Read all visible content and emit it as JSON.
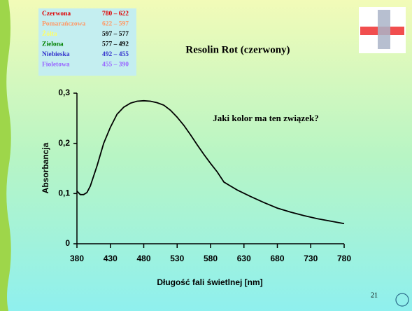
{
  "chart_data": {
    "type": "line",
    "title": "Resolin Rot (czerwony)",
    "x_label": "Długość fali świetlnej [nm]",
    "y_label": "Absorbancja",
    "annotation": "Jaki kolor ma ten związek?",
    "x": [
      380,
      385,
      390,
      395,
      400,
      410,
      420,
      430,
      440,
      450,
      460,
      470,
      480,
      490,
      500,
      510,
      520,
      530,
      540,
      550,
      560,
      570,
      580,
      590,
      600,
      610,
      620,
      640,
      660,
      680,
      700,
      720,
      740,
      760,
      780
    ],
    "values": [
      0.105,
      0.098,
      0.098,
      0.102,
      0.115,
      0.155,
      0.2,
      0.232,
      0.258,
      0.272,
      0.28,
      0.284,
      0.285,
      0.284,
      0.281,
      0.276,
      0.266,
      0.252,
      0.236,
      0.217,
      0.197,
      0.178,
      0.16,
      0.143,
      0.123,
      0.115,
      0.107,
      0.094,
      0.082,
      0.071,
      0.063,
      0.056,
      0.05,
      0.045,
      0.04
    ],
    "color": "#000000",
    "xlim": [
      380,
      780
    ],
    "xticks": [
      380,
      430,
      480,
      530,
      580,
      630,
      680,
      730,
      780
    ],
    "ylim": [
      0,
      0.3
    ],
    "yticks": [
      0,
      {
        "value": 0.1,
        "label": "0,1"
      },
      {
        "value": 0.2,
        "label": "0,2"
      },
      {
        "value": 0.3,
        "label": "0,3"
      }
    ]
  },
  "color_table": [
    {
      "name": "Czerwona",
      "range": "780 – 622",
      "name_color": "#e00000",
      "range_color": "#e00000"
    },
    {
      "name": "Pomarańczowa",
      "range": "622 – 597",
      "name_color": "#ff9966",
      "range_color": "#ff9966"
    },
    {
      "name": "Żółta",
      "range": "597 – 577",
      "name_color": "#ffff66",
      "range_color": "#000000"
    },
    {
      "name": "Zielona",
      "range": "577 – 492",
      "name_color": "#008000",
      "range_color": "#000000"
    },
    {
      "name": "Niebieska",
      "range": "492 – 455",
      "name_color": "#3333cc",
      "range_color": "#3333cc"
    },
    {
      "name": "Fioletowa",
      "range": "455 – 390",
      "name_color": "#9966ff",
      "range_color": "#9966ff"
    }
  ],
  "page_number": "21"
}
